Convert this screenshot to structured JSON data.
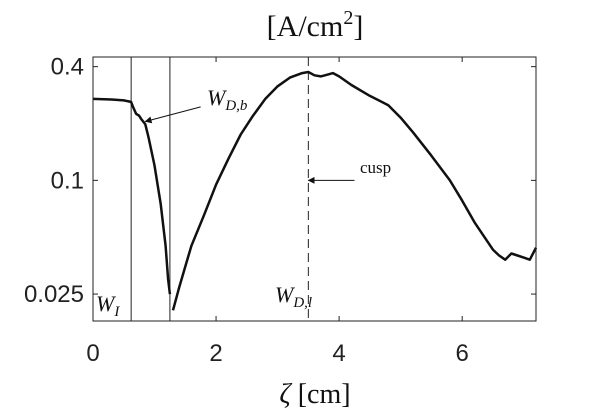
{
  "chart_data": {
    "type": "line",
    "title_main": "[A/cm",
    "title_sup": "2",
    "title_close": "]",
    "xlabel_symbol": "ζ",
    "xlabel_unit": " [cm]",
    "xlim": [
      0,
      7.2
    ],
    "ylim": [
      0.018,
      0.45
    ],
    "yscale": "log",
    "xticks": [
      0,
      2,
      4,
      6
    ],
    "xtick_labels": [
      "0",
      "2",
      "4",
      "6"
    ],
    "yticks": [
      0.025,
      0.1,
      0.4
    ],
    "ytick_labels": [
      "0.025",
      "0.1",
      "0.4"
    ],
    "grid": false,
    "series": [
      {
        "x": [
          0.0,
          0.3,
          0.5,
          0.58,
          0.62,
          0.65,
          0.7,
          0.75,
          0.78,
          0.85,
          0.9,
          1.0,
          1.1,
          1.18,
          1.22,
          1.25,
          1.28,
          1.3,
          1.4,
          1.5,
          1.6,
          1.8,
          2.0,
          2.2,
          2.4,
          2.6,
          2.8,
          3.0,
          3.2,
          3.4,
          3.5,
          3.6,
          3.7,
          3.8,
          3.9,
          4.0,
          4.2,
          4.5,
          4.8,
          5.0,
          5.2,
          5.5,
          5.8,
          6.0,
          6.2,
          6.4,
          6.5,
          6.6,
          6.7,
          6.8,
          6.9,
          7.0,
          7.1,
          7.2
        ],
        "y": [
          0.27,
          0.268,
          0.265,
          0.262,
          0.26,
          0.245,
          0.225,
          0.22,
          0.212,
          0.198,
          0.17,
          0.12,
          0.075,
          0.045,
          0.03,
          0.025,
          null,
          0.0205,
          0.027,
          0.035,
          0.045,
          0.065,
          0.095,
          0.13,
          0.175,
          0.22,
          0.27,
          0.315,
          0.35,
          0.37,
          0.375,
          0.36,
          0.355,
          0.362,
          0.37,
          0.355,
          0.32,
          0.28,
          0.25,
          0.215,
          0.18,
          0.135,
          0.1,
          0.078,
          0.06,
          0.048,
          0.043,
          0.04,
          0.038,
          0.041,
          0.04,
          0.039,
          0.038,
          0.044
        ]
      }
    ],
    "vlines": [
      {
        "x": 0.62,
        "style": "solid"
      },
      {
        "x": 1.25,
        "style": "solid"
      },
      {
        "x": 3.5,
        "style": "dashed"
      }
    ],
    "annotations": [
      {
        "main": "W",
        "sub": "I",
        "x": 0.05,
        "y": 0.021
      },
      {
        "main": "W",
        "sub": "D,b",
        "x": 1.85,
        "y": 0.24
      },
      {
        "main": "W",
        "sub": "D,l",
        "x": 2.95,
        "y": 0.022
      },
      {
        "text": "cusp",
        "x": 4.35,
        "y": 0.1
      }
    ],
    "arrows": [
      {
        "from": [
          1.75,
          0.245
        ],
        "to": [
          0.85,
          0.205
        ]
      },
      {
        "from": [
          4.25,
          0.1
        ],
        "to": [
          3.5,
          0.1
        ]
      }
    ]
  }
}
